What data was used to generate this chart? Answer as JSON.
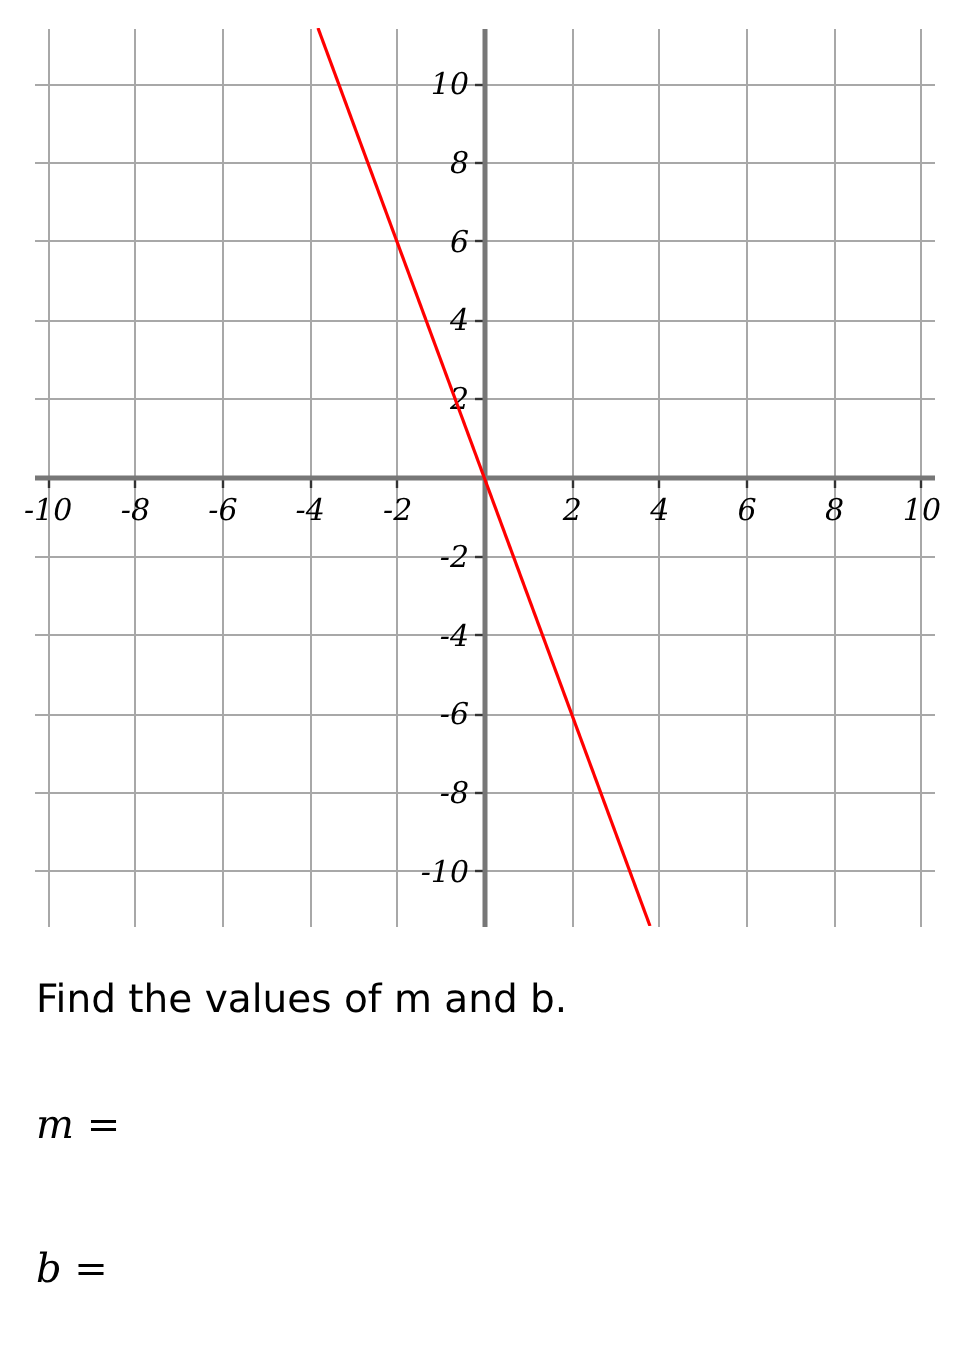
{
  "chart_data": {
    "type": "line",
    "x": [
      -3.8,
      0,
      3.8
    ],
    "series": [
      {
        "color": "#ff0000",
        "values": [
          11.4,
          0,
          -11.4
        ]
      }
    ],
    "xlim": [
      -10.3,
      10.3
    ],
    "ylim": [
      -11.4,
      11.4
    ],
    "xticks": [
      -10,
      -8,
      -6,
      -4,
      -2,
      2,
      4,
      6,
      8,
      10
    ],
    "yticks": [
      -10,
      -8,
      -6,
      -4,
      -2,
      2,
      4,
      6,
      8,
      10
    ],
    "grid": true,
    "annotations": [
      "Find the values of m and b.",
      "m =",
      "b ="
    ]
  }
}
